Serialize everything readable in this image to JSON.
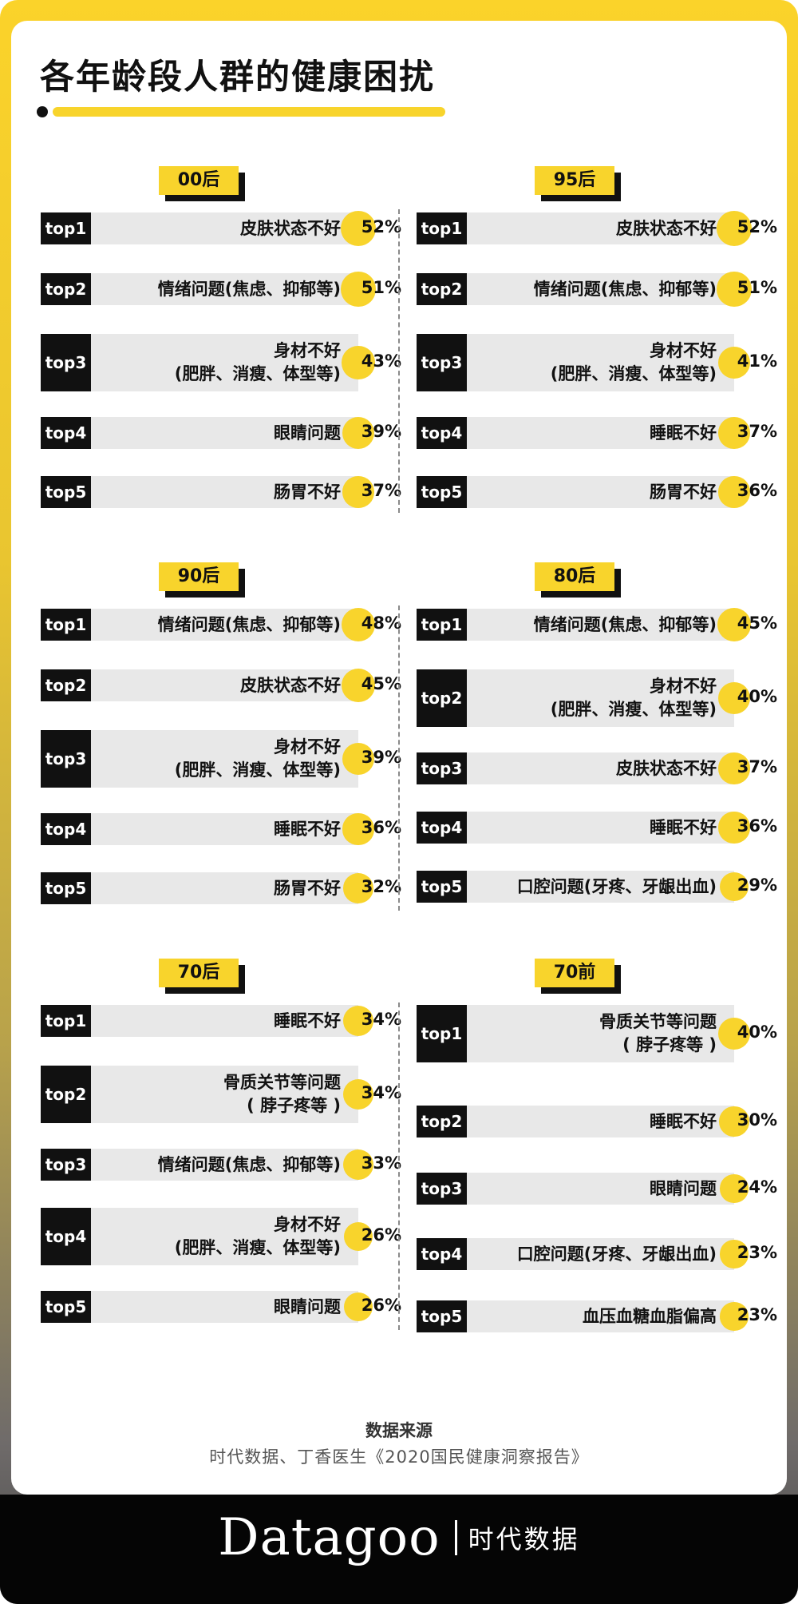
{
  "title": "各年龄段人群的健康困扰",
  "source": {
    "label": "数据来源",
    "text": "时代数据、丁香医生《2020国民健康洞察报告》"
  },
  "footer": {
    "brand": "Datagoo",
    "brand_cn": "时代数据"
  },
  "colors": {
    "accent": "#f8d42c",
    "dark": "#111111",
    "bar": "#e8e8e8"
  },
  "chart_data": {
    "type": "bar",
    "groups": [
      {
        "label": "00后",
        "items": [
          {
            "rank": "top1",
            "text": [
              "皮肤状态不好"
            ],
            "value": 52,
            "display": "52%"
          },
          {
            "rank": "top2",
            "text": [
              "情绪问题(焦虑、抑郁等)"
            ],
            "value": 51,
            "display": "51%"
          },
          {
            "rank": "top3",
            "text": [
              "身材不好",
              "(肥胖、消瘦、体型等)"
            ],
            "value": 43,
            "display": "43%"
          },
          {
            "rank": "top4",
            "text": [
              "眼睛问题"
            ],
            "value": 39,
            "display": "39%"
          },
          {
            "rank": "top5",
            "text": [
              "肠胃不好"
            ],
            "value": 37,
            "display": "37%"
          }
        ]
      },
      {
        "label": "95后",
        "items": [
          {
            "rank": "top1",
            "text": [
              "皮肤状态不好"
            ],
            "value": 52,
            "display": "52%"
          },
          {
            "rank": "top2",
            "text": [
              "情绪问题(焦虑、抑郁等)"
            ],
            "value": 51,
            "display": "51%"
          },
          {
            "rank": "top3",
            "text": [
              "身材不好",
              "(肥胖、消瘦、体型等)"
            ],
            "value": 41,
            "display": "41%"
          },
          {
            "rank": "top4",
            "text": [
              "睡眠不好"
            ],
            "value": 37,
            "display": "37%"
          },
          {
            "rank": "top5",
            "text": [
              "肠胃不好"
            ],
            "value": 36,
            "display": "36%"
          }
        ]
      },
      {
        "label": "90后",
        "items": [
          {
            "rank": "top1",
            "text": [
              "情绪问题(焦虑、抑郁等)"
            ],
            "value": 48,
            "display": "48%"
          },
          {
            "rank": "top2",
            "text": [
              "皮肤状态不好"
            ],
            "value": 45,
            "display": "45%"
          },
          {
            "rank": "top3",
            "text": [
              "身材不好",
              "(肥胖、消瘦、体型等)"
            ],
            "value": 39,
            "display": "39%"
          },
          {
            "rank": "top4",
            "text": [
              "睡眠不好"
            ],
            "value": 36,
            "display": "36%"
          },
          {
            "rank": "top5",
            "text": [
              "肠胃不好"
            ],
            "value": 32,
            "display": "32%"
          }
        ]
      },
      {
        "label": "80后",
        "items": [
          {
            "rank": "top1",
            "text": [
              "情绪问题(焦虑、抑郁等)"
            ],
            "value": 45,
            "display": "45%"
          },
          {
            "rank": "top2",
            "text": [
              "身材不好",
              "(肥胖、消瘦、体型等)"
            ],
            "value": 40,
            "display": "40%"
          },
          {
            "rank": "top3",
            "text": [
              "皮肤状态不好"
            ],
            "value": 37,
            "display": "37%"
          },
          {
            "rank": "top4",
            "text": [
              "睡眠不好"
            ],
            "value": 36,
            "display": "36%"
          },
          {
            "rank": "top5",
            "text": [
              "口腔问题(牙疼、牙龈出血)"
            ],
            "value": 29,
            "display": "29%"
          }
        ]
      },
      {
        "label": "70后",
        "items": [
          {
            "rank": "top1",
            "text": [
              "睡眠不好"
            ],
            "value": 34,
            "display": "34%"
          },
          {
            "rank": "top2",
            "text": [
              "骨质关节等问题",
              "( 脖子疼等 )"
            ],
            "value": 34,
            "display": "34%"
          },
          {
            "rank": "top3",
            "text": [
              "情绪问题(焦虑、抑郁等)"
            ],
            "value": 33,
            "display": "33%"
          },
          {
            "rank": "top4",
            "text": [
              "身材不好",
              "(肥胖、消瘦、体型等)"
            ],
            "value": 26,
            "display": "26%"
          },
          {
            "rank": "top5",
            "text": [
              "眼睛问题"
            ],
            "value": 26,
            "display": "26%"
          }
        ]
      },
      {
        "label": "70前",
        "items": [
          {
            "rank": "top1",
            "text": [
              "骨质关节等问题",
              "( 脖子疼等 )"
            ],
            "value": 40,
            "display": "40%"
          },
          {
            "rank": "top2",
            "text": [
              "睡眠不好"
            ],
            "value": 30,
            "display": "30%"
          },
          {
            "rank": "top3",
            "text": [
              "眼睛问题"
            ],
            "value": 24,
            "display": "24%"
          },
          {
            "rank": "top4",
            "text": [
              "口腔问题(牙疼、牙龈出血)"
            ],
            "value": 23,
            "display": "23%"
          },
          {
            "rank": "top5",
            "text": [
              "血压血糖血脂偏高"
            ],
            "value": 23,
            "display": "23%"
          }
        ]
      }
    ]
  }
}
